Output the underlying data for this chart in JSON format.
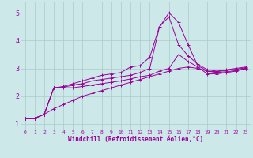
{
  "xlabel": "Windchill (Refroidissement éolien,°C)",
  "bg_color": "#cce8e8",
  "line_color": "#990099",
  "grid_color": "#aacccc",
  "xlim": [
    -0.5,
    23.5
  ],
  "ylim": [
    0.8,
    5.4
  ],
  "yticks": [
    1,
    2,
    3,
    4,
    5
  ],
  "xticks": [
    0,
    1,
    2,
    3,
    4,
    5,
    6,
    7,
    8,
    9,
    10,
    11,
    12,
    13,
    14,
    15,
    16,
    17,
    18,
    19,
    20,
    21,
    22,
    23
  ],
  "series": [
    [
      1.2,
      1.2,
      1.35,
      2.3,
      2.35,
      2.45,
      2.55,
      2.65,
      2.75,
      2.8,
      2.85,
      3.05,
      3.1,
      3.4,
      4.5,
      4.85,
      3.85,
      3.45,
      3.15,
      2.95,
      2.9,
      2.95,
      3.0,
      3.05
    ],
    [
      1.2,
      1.2,
      1.35,
      2.3,
      2.32,
      2.4,
      2.45,
      2.55,
      2.6,
      2.65,
      2.7,
      2.75,
      2.85,
      3.0,
      4.47,
      5.0,
      4.65,
      3.85,
      3.1,
      2.9,
      2.88,
      2.93,
      2.97,
      3.02
    ],
    [
      1.2,
      1.2,
      1.35,
      2.3,
      2.3,
      2.3,
      2.35,
      2.4,
      2.45,
      2.5,
      2.55,
      2.62,
      2.7,
      2.75,
      2.9,
      3.0,
      3.5,
      3.25,
      3.05,
      2.8,
      2.8,
      2.85,
      2.9,
      3.0
    ],
    [
      1.2,
      1.2,
      1.35,
      1.55,
      1.7,
      1.85,
      2.0,
      2.1,
      2.2,
      2.3,
      2.4,
      2.5,
      2.6,
      2.7,
      2.8,
      2.9,
      3.0,
      3.05,
      3.0,
      2.9,
      2.85,
      2.88,
      2.92,
      3.0
    ]
  ]
}
